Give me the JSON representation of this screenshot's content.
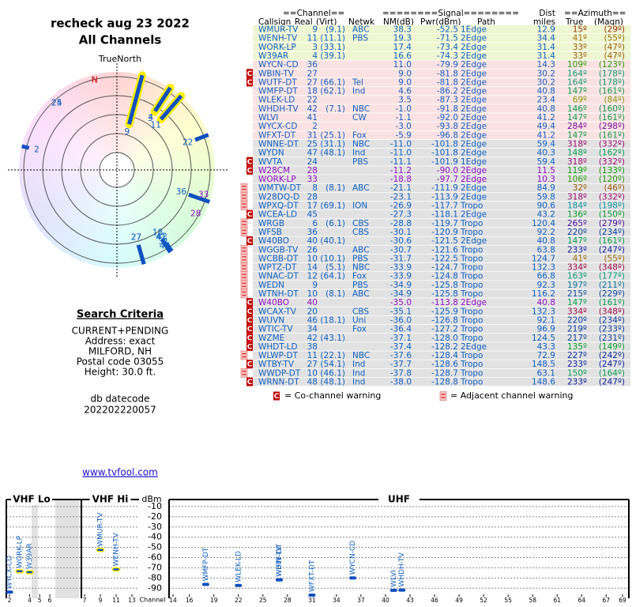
{
  "header": {
    "title": "recheck aug 23 2022",
    "subtitle": "All Channels"
  },
  "polar": {
    "north_label": "TrueNorth",
    "magnetic_label": "N"
  },
  "search": {
    "heading": "Search Criteria",
    "lines": [
      "CURRENT+PENDING",
      "Address: exact",
      "MILFORD, NH",
      "Postal code 03055",
      "Height: 30.0 ft."
    ],
    "datecode_label": "db datecode",
    "datecode": "202202220057"
  },
  "link": "www.tvfool.com",
  "table": {
    "header_top": [
      "==Channel==",
      "========Signal========",
      "Dist",
      "==Azimuth=="
    ],
    "columns": {
      "callsign": "Callsign",
      "real": "Real",
      "virt": "(Virt)",
      "netwk": "Netwk",
      "nm": "NM(dB)",
      "pwr": "Pwr(dBm)",
      "path": "Path",
      "dist": "miles",
      "true": "True",
      "magn": "(Magn)"
    },
    "sections": [
      {
        "color": "#eef6d2",
        "rows": [
          {
            "callsign": "WMUR-TV",
            "real": "9",
            "virt": "(9.1)",
            "netwk": "ABC",
            "nm": "38.3",
            "pwr": "-52.5",
            "path": "1Edge",
            "dist": "12.9",
            "true": "15º",
            "magn": "(29º)"
          },
          {
            "callsign": "WENH-TV",
            "real": "11",
            "virt": "(11.1)",
            "netwk": "PBS",
            "nm": "19.3",
            "pwr": "-71.5",
            "path": "2Edge",
            "dist": "34.4",
            "true": "41º",
            "magn": "(55º)"
          },
          {
            "callsign": "WORK-LP",
            "real": "3",
            "virt": "(33.1)",
            "nm": "17.4",
            "pwr": "-73.4",
            "path": "2Edge",
            "dist": "31.4",
            "true": "33º",
            "magn": "(47º)"
          },
          {
            "callsign": "W39AR",
            "real": "4",
            "virt": "(39.1)",
            "nm": "16.6",
            "pwr": "-74.3",
            "path": "2Edge",
            "dist": "31.4",
            "true": "33º",
            "magn": "(47º)"
          }
        ]
      },
      {
        "color": "#fbe2e2",
        "rows": [
          {
            "callsign": "WYCN-CD",
            "real": "36",
            "nm": "11.0",
            "pwr": "-79.9",
            "path": "2Edge",
            "dist": "14.3",
            "true": "109º",
            "magn": "(123º)"
          },
          {
            "callsign": "WBIN-TV",
            "real": "27",
            "nm": "9.0",
            "pwr": "-81.8",
            "path": "2Edge",
            "dist": "30.2",
            "true": "164º",
            "magn": "(178º)",
            "warning": "C"
          },
          {
            "callsign": "WUTF-DT",
            "real": "27",
            "virt": "(66.1)",
            "netwk": "Tel",
            "nm": "9.0",
            "pwr": "-81.8",
            "path": "2Edge",
            "dist": "30.2",
            "true": "164º",
            "magn": "(178º)",
            "warning": "C"
          },
          {
            "callsign": "WMFP-DT",
            "real": "18",
            "virt": "(62.1)",
            "netwk": "Ind",
            "nm": "4.6",
            "pwr": "-86.2",
            "path": "2Edge",
            "dist": "40.8",
            "true": "147º",
            "magn": "(161º)"
          },
          {
            "callsign": "WLEK-LD",
            "real": "22",
            "nm": "3.5",
            "pwr": "-87.3",
            "path": "2Edge",
            "dist": "23.4",
            "true": "69º",
            "magn": "(84º)"
          },
          {
            "callsign": "WHDH-TV",
            "real": "42",
            "virt": "(7.1)",
            "netwk": "NBC",
            "nm": "-1.0",
            "pwr": "-91.8",
            "path": "2Edge",
            "dist": "40.8",
            "true": "146º",
            "magn": "(160º)"
          },
          {
            "callsign": "WLVI",
            "real": "41",
            "netwk": "CW",
            "nm": "-1.1",
            "pwr": "-92.0",
            "path": "2Edge",
            "dist": "41.2",
            "true": "147º",
            "magn": "(161º)"
          },
          {
            "callsign": "WYCX-CD",
            "real": "2",
            "nm": "-3.0",
            "pwr": "-93.8",
            "path": "2Edge",
            "dist": "49.4",
            "true": "284º",
            "magn": "(298º)"
          },
          {
            "callsign": "WFXT-DT",
            "real": "31",
            "virt": "(25.1)",
            "netwk": "Fox",
            "nm": "-5.9",
            "pwr": "-96.8",
            "path": "2Edge",
            "dist": "41.2",
            "true": "147º",
            "magn": "(161º)"
          }
        ]
      },
      {
        "color": "#e2e2e2",
        "rows": [
          {
            "callsign": "WNNE-DT",
            "real": "25",
            "virt": "(31.1)",
            "netwk": "NBC",
            "nm": "-11.0",
            "pwr": "-101.8",
            "path": "2Edge",
            "dist": "59.4",
            "true": "318º",
            "magn": "(332º)"
          },
          {
            "callsign": "WYDN",
            "real": "47",
            "virt": "(48.1)",
            "netwk": "Ind",
            "nm": "-11.0",
            "pwr": "-101.8",
            "path": "2Edge",
            "dist": "40.3",
            "true": "148º",
            "magn": "(162º)"
          },
          {
            "callsign": "WVTA",
            "real": "24",
            "netwk": "PBS",
            "nm": "-11.1",
            "pwr": "-101.9",
            "path": "1Edge",
            "dist": "59.4",
            "true": "318º",
            "magn": "(332º)",
            "warning": "C"
          },
          {
            "callsign": "W28CM",
            "real": "28",
            "nm": "-11.2",
            "pwr": "-90.0",
            "path": "2Edge",
            "dist": "11.5",
            "true": "119º",
            "magn": "(133º)",
            "warning": "C",
            "color": "#9010c0"
          },
          {
            "callsign": "WORK-LP",
            "real": "33",
            "nm": "-18.8",
            "pwr": "-97.7",
            "path": "2Edge",
            "dist": "10.3",
            "true": "106º",
            "magn": "(120º)",
            "color": "#9010c0"
          },
          {
            "callsign": "WMTW-DT",
            "real": "8",
            "virt": "(8.1)",
            "netwk": "ABC",
            "nm": "-21.1",
            "pwr": "-111.9",
            "path": "2Edge",
            "dist": "84.9",
            "true": "32º",
            "magn": "(46º)",
            "adjacent": true
          },
          {
            "callsign": "W28DQ-D",
            "real": "28",
            "nm": "-23.1",
            "pwr": "-113.9",
            "path": "2Edge",
            "dist": "59.8",
            "true": "318º",
            "magn": "(332º)",
            "adjacent": true
          },
          {
            "callsign": "WPXQ-DT",
            "real": "17",
            "virt": "(69.1)",
            "netwk": "ION",
            "nm": "-26.9",
            "pwr": "-117.7",
            "path": "Tropo",
            "dist": "90.6",
            "true": "184º",
            "magn": "(198º)",
            "adjacent": true
          },
          {
            "callsign": "WCEA-LD",
            "real": "45",
            "nm": "-27.3",
            "pwr": "-118.1",
            "path": "2Edge",
            "dist": "43.2",
            "true": "136º",
            "magn": "(150º)",
            "warning": "C"
          },
          {
            "callsign": "WRGB",
            "real": "6",
            "virt": "(6.1)",
            "netwk": "CBS",
            "nm": "-28.8",
            "pwr": "-119.7",
            "path": "Tropo",
            "dist": "120.4",
            "true": "265º",
            "magn": "(279º)",
            "adjacent": true
          },
          {
            "callsign": "WFSB",
            "real": "36",
            "netwk": "CBS",
            "nm": "-30.1",
            "pwr": "-120.9",
            "path": "Tropo",
            "dist": "92.2",
            "true": "220º",
            "magn": "(234º)",
            "adjacent": true
          },
          {
            "callsign": "W40BO",
            "real": "40",
            "virt": "(40.1)",
            "nm": "-30.6",
            "pwr": "-121.5",
            "path": "2Edge",
            "dist": "40.8",
            "true": "147º",
            "magn": "(161º)",
            "warning": "C"
          },
          {
            "callsign": "WGGB-TV",
            "real": "26",
            "netwk": "ABC",
            "nm": "-30.7",
            "pwr": "-121.6",
            "path": "Tropo",
            "dist": "63.8",
            "true": "233º",
            "magn": "(247º)",
            "adjacent": true
          },
          {
            "callsign": "WCBB-DT",
            "real": "10",
            "virt": "(10.1)",
            "netwk": "PBS",
            "nm": "-31.7",
            "pwr": "-122.5",
            "path": "Tropo",
            "dist": "124.7",
            "true": "41º",
            "magn": "(55º)",
            "adjacent": true
          },
          {
            "callsign": "WPTZ-DT",
            "real": "14",
            "virt": "(5.1)",
            "netwk": "NBC",
            "nm": "-33.9",
            "pwr": "-124.7",
            "path": "Tropo",
            "dist": "132.3",
            "true": "334º",
            "magn": "(348º)",
            "adjacent": true
          },
          {
            "callsign": "WNAC-DT",
            "real": "12",
            "virt": "(64.1)",
            "netwk": "Fox",
            "nm": "-33.9",
            "pwr": "-124.8",
            "path": "Tropo",
            "dist": "66.8",
            "true": "163º",
            "magn": "(177º)",
            "adjacent": true
          },
          {
            "callsign": "WEDN",
            "real": "9",
            "netwk": "PBS",
            "nm": "-34.9",
            "pwr": "-125.8",
            "path": "Tropo",
            "dist": "92.3",
            "true": "197º",
            "magn": "(211º)",
            "adjacent": true
          },
          {
            "callsign": "WTNH-DT",
            "real": "10",
            "virt": "(8.1)",
            "netwk": "ABC",
            "nm": "-34.9",
            "pwr": "-125.8",
            "path": "Tropo",
            "dist": "116.2",
            "true": "215º",
            "magn": "(229º)",
            "adjacent": true
          },
          {
            "callsign": "W40BO",
            "real": "40",
            "nm": "-35.0",
            "pwr": "-113.8",
            "path": "2Edge",
            "dist": "40.8",
            "true": "147º",
            "magn": "(161º)",
            "warning": "C",
            "color": "#9010c0"
          },
          {
            "callsign": "WCAX-TV",
            "real": "20",
            "netwk": "CBS",
            "nm": "-35.1",
            "pwr": "-125.9",
            "path": "Tropo",
            "dist": "132.3",
            "true": "334º",
            "magn": "(348º)",
            "warning": "C"
          },
          {
            "callsign": "WUVN",
            "real": "46",
            "virt": "(18.1)",
            "netwk": "Uni",
            "nm": "-36.0",
            "pwr": "-126.8",
            "path": "Tropo",
            "dist": "92.1",
            "true": "220º",
            "magn": "(234º)",
            "warning": "C"
          },
          {
            "callsign": "WTIC-TV",
            "real": "34",
            "netwk": "Fox",
            "nm": "-36.4",
            "pwr": "-127.2",
            "path": "Tropo",
            "dist": "96.9",
            "true": "219º",
            "magn": "(233º)",
            "warning": "C"
          },
          {
            "callsign": "WZME",
            "real": "42",
            "virt": "(43.1)",
            "nm": "-37.1",
            "pwr": "-128.0",
            "path": "Tropo",
            "dist": "124.5",
            "true": "217º",
            "magn": "(231º)",
            "warning": "C"
          },
          {
            "callsign": "WHDT-LD",
            "real": "38",
            "nm": "-37.4",
            "pwr": "-128.2",
            "path": "2Edge",
            "dist": "43.3",
            "true": "135º",
            "magn": "(149º)",
            "warning": "C"
          },
          {
            "callsign": "WLWP-DT",
            "real": "11",
            "virt": "(22.1)",
            "netwk": "NBC",
            "nm": "-37.6",
            "pwr": "-128.4",
            "path": "Tropo",
            "dist": "72.9",
            "true": "227º",
            "magn": "(242º)",
            "adjacent": true
          },
          {
            "callsign": "WTBY-TV",
            "real": "27",
            "virt": "(54.1)",
            "netwk": "Ind",
            "nm": "-37.7",
            "pwr": "-128.6",
            "path": "Tropo",
            "dist": "148.5",
            "true": "233º",
            "magn": "(247º)",
            "warning": "C"
          },
          {
            "callsign": "WWDP-DT",
            "real": "10",
            "virt": "(46.1)",
            "netwk": "Ind",
            "nm": "-37.8",
            "pwr": "-128.7",
            "path": "Tropo",
            "dist": "63.1",
            "true": "150º",
            "magn": "(164º)",
            "adjacent": true
          },
          {
            "callsign": "WRNN-DT",
            "real": "48",
            "virt": "(48.1)",
            "netwk": "Ind",
            "nm": "-38.0",
            "pwr": "-128.8",
            "path": "Tropo",
            "dist": "148.6",
            "true": "233º",
            "magn": "(247º)",
            "warning": "C"
          }
        ]
      }
    ]
  },
  "legend": {
    "co_icon": "C",
    "co": "= Co-channel warning",
    "adj": "= Adjacent channel warning"
  },
  "spectrum": {
    "ylabel": "dBm",
    "xlabel": "Channel",
    "ylim": [
      -96,
      0
    ],
    "yticks": [
      -10,
      -20,
      -30,
      -40,
      -50,
      -60,
      -70,
      -80,
      -90
    ],
    "bands": [
      {
        "name": "VHF Lo",
        "xlim": [
          2,
          6
        ],
        "ticks": [
          2,
          4,
          5,
          6
        ]
      },
      {
        "name": "VHF Hi",
        "xlim": [
          7,
          13
        ],
        "ticks": [
          7,
          9,
          11,
          13
        ]
      },
      {
        "name": "UHF",
        "xlim": [
          14,
          69
        ],
        "ticks": [
          14,
          16,
          19,
          22,
          25,
          28,
          31,
          34,
          37,
          40,
          43,
          46,
          49,
          52,
          55,
          58,
          61,
          64,
          67,
          69
        ]
      }
    ]
  }
}
